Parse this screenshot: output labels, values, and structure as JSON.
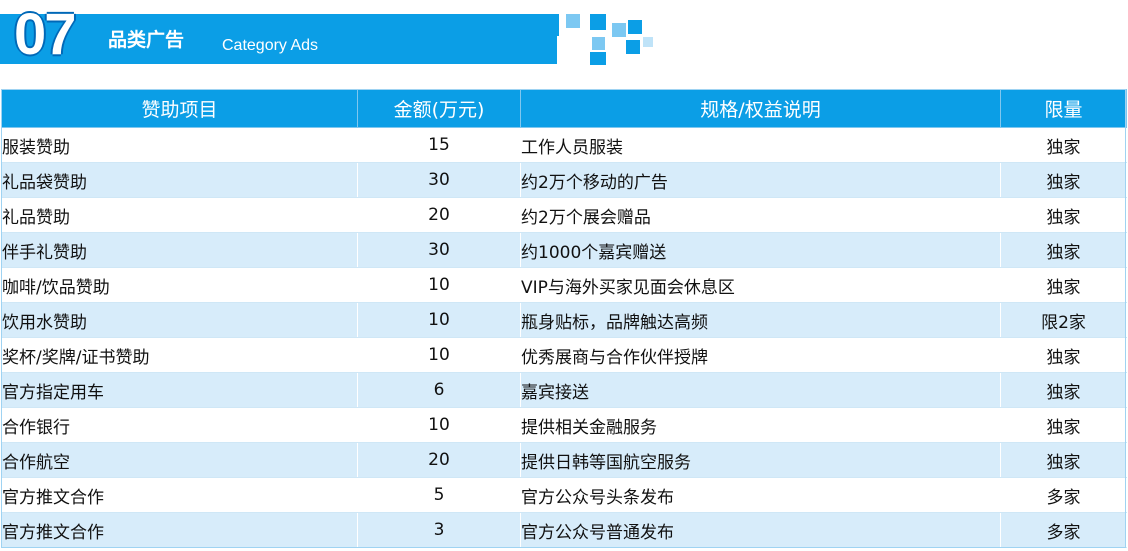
{
  "section": {
    "number": "07",
    "title_cn": "品类广告",
    "title_en": "Category Ads"
  },
  "table": {
    "headers": {
      "item": "赞助项目",
      "amount": "金额(万元)",
      "spec": "规格/权益说明",
      "limit": "限量"
    },
    "rows": [
      {
        "item": "服装赞助",
        "amount": "15",
        "spec": "工作人员服装",
        "limit": "独家"
      },
      {
        "item": "礼品袋赞助",
        "amount": "30",
        "spec": "约2万个移动的广告",
        "limit": "独家"
      },
      {
        "item": "礼品赞助",
        "amount": "20",
        "spec": "约2万个展会赠品",
        "limit": "独家"
      },
      {
        "item": "伴手礼赞助",
        "amount": "30",
        "spec": "约1000个嘉宾赠送",
        "limit": "独家"
      },
      {
        "item": "咖啡/饮品赞助",
        "amount": "10",
        "spec": "VIP与海外买家见面会休息区",
        "limit": "独家"
      },
      {
        "item": "饮用水赞助",
        "amount": "10",
        "spec": "瓶身贴标，品牌触达高频",
        "limit": "限2家"
      },
      {
        "item": "奖杯/奖牌/证书赞助",
        "amount": "10",
        "spec": "优秀展商与合作伙伴授牌",
        "limit": "独家"
      },
      {
        "item": "官方指定用车",
        "amount": "6",
        "spec": "嘉宾接送",
        "limit": "独家"
      },
      {
        "item": "合作银行",
        "amount": "10",
        "spec": "提供相关金融服务",
        "limit": "独家"
      },
      {
        "item": "合作航空",
        "amount": "20",
        "spec": "提供日韩等国航空服务",
        "limit": "独家"
      },
      {
        "item": "官方推文合作",
        "amount": "5",
        "spec": "官方公众号头条发布",
        "limit": "多家"
      },
      {
        "item": "官方推文合作",
        "amount": "3",
        "spec": "官方公众号普通发布",
        "limit": "多家"
      }
    ]
  }
}
